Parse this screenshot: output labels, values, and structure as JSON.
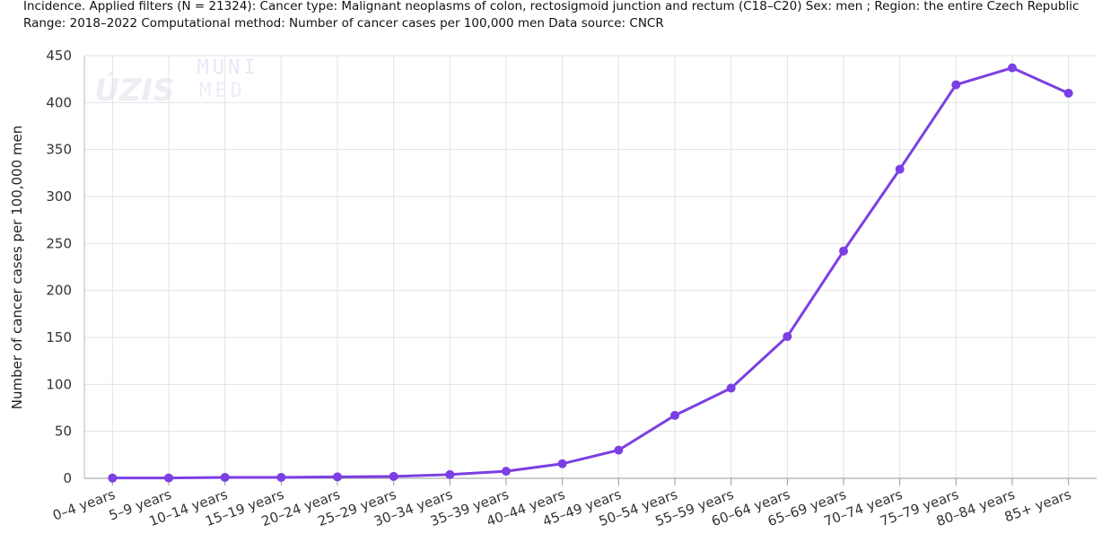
{
  "chart_data": {
    "type": "line",
    "title": [
      "Incidence. Applied filters (N = 21324): Cancer type: Malignant neoplasms of colon, rectosigmoid junction and rectum (C18–C20) Sex: men ; Region: the entire Czech Republic",
      "Range: 2018–2022 Computational method: Number of cancer cases per 100,000 men Data source: CNCR"
    ],
    "watermark": [
      "ÚZIS",
      "MUNI",
      "MED"
    ],
    "y_label": "Number of cancer cases per 100,000 men",
    "categories": [
      "0–4 years",
      "5–9 years",
      "10–14 years",
      "15–19 years",
      "20–24 years",
      "25–29 years",
      "30–34 years",
      "35–39 years",
      "40–44 years",
      "45–49 years",
      "50–54 years",
      "55–59 years",
      "60–64 years",
      "65–69 years",
      "70–74 years",
      "75–79 years",
      "80–84 years",
      "85+ years"
    ],
    "series": [
      {
        "name": "Number of cancer cases per 100,000 men",
        "color": "#7b3fe4",
        "values": [
          0.3,
          0.4,
          1,
          1,
          1.5,
          2,
          4,
          7.5,
          15.5,
          30,
          67,
          96,
          151,
          242,
          329,
          419,
          437,
          410
        ]
      }
    ],
    "ylim": [
      0,
      450
    ],
    "yticks": [
      0,
      50,
      100,
      150,
      200,
      250,
      300,
      350,
      400,
      450
    ],
    "grid": true
  }
}
